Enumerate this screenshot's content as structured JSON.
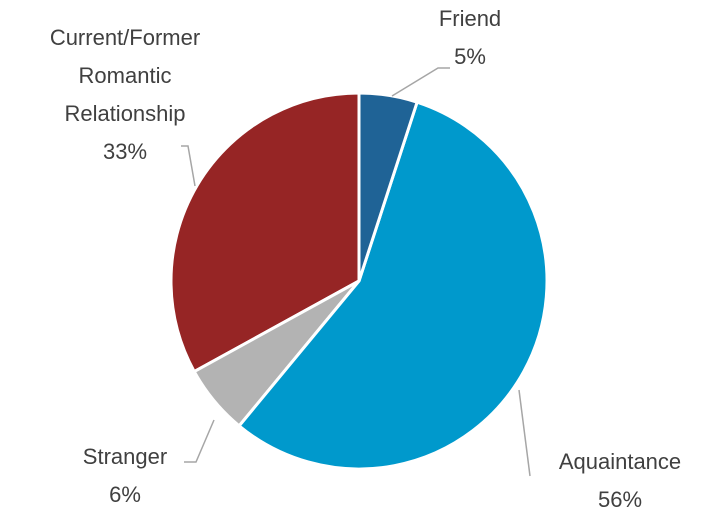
{
  "chart_data": {
    "type": "pie",
    "categories": [
      "Friend",
      "Aquaintance",
      "Stranger",
      "Current/Former Romantic Relationship"
    ],
    "values": [
      5,
      56,
      6,
      33
    ],
    "value_labels": [
      "5%",
      "56%",
      "6%",
      "33%"
    ],
    "colors": [
      "#1f6396",
      "#0099cc",
      "#b3b3b3",
      "#962525"
    ]
  }
}
